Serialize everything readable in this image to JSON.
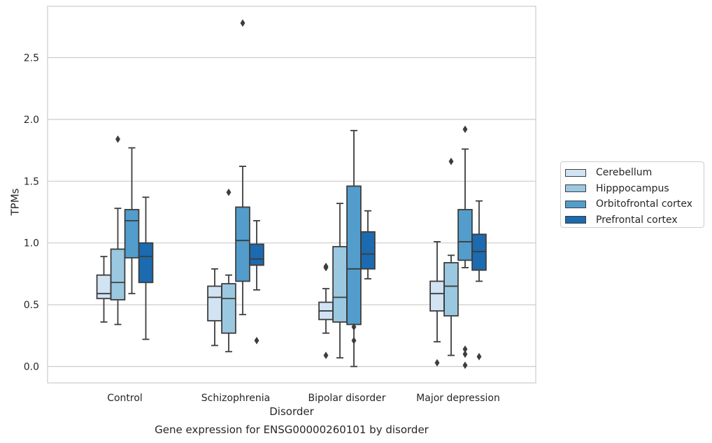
{
  "chart_data": {
    "type": "boxplot",
    "title": "",
    "caption": "Gene expression for ENSG00000260101 by disorder",
    "xlabel": "Disorder",
    "ylabel": "TPMs",
    "ylim": [
      -0.13,
      2.92
    ],
    "yticks": [
      0.0,
      0.5,
      1.0,
      1.5,
      2.0,
      2.5
    ],
    "ytick_labels": [
      "0.0",
      "0.5",
      "1.0",
      "1.5",
      "2.0",
      "2.5"
    ],
    "grid": "horizontal",
    "legend_position": "right",
    "categories": [
      "Control",
      "Schizophrenia",
      "Bipolar disorder",
      "Major depression"
    ],
    "series": [
      {
        "name": "Cerebellum",
        "color": "#d2e3f3",
        "boxes": [
          {
            "whislo": 0.36,
            "q1": 0.55,
            "med": 0.59,
            "q3": 0.74,
            "whishi": 0.89,
            "fliers": []
          },
          {
            "whislo": 0.17,
            "q1": 0.37,
            "med": 0.56,
            "q3": 0.65,
            "whishi": 0.79,
            "fliers": []
          },
          {
            "whislo": 0.27,
            "q1": 0.38,
            "med": 0.45,
            "q3": 0.52,
            "whishi": 0.63,
            "fliers": [
              0.09,
              0.81,
              0.8
            ]
          },
          {
            "whislo": 0.2,
            "q1": 0.45,
            "med": 0.59,
            "q3": 0.69,
            "whishi": 1.01,
            "fliers": [
              0.03
            ]
          }
        ]
      },
      {
        "name": "Hipppocampus",
        "color": "#9ac8e0",
        "boxes": [
          {
            "whislo": 0.34,
            "q1": 0.54,
            "med": 0.68,
            "q3": 0.95,
            "whishi": 1.28,
            "fliers": [
              1.84
            ]
          },
          {
            "whislo": 0.12,
            "q1": 0.27,
            "med": 0.55,
            "q3": 0.67,
            "whishi": 0.74,
            "fliers": [
              1.41
            ]
          },
          {
            "whislo": 0.07,
            "q1": 0.36,
            "med": 0.56,
            "q3": 0.97,
            "whishi": 1.32,
            "fliers": []
          },
          {
            "whislo": 0.09,
            "q1": 0.41,
            "med": 0.65,
            "q3": 0.84,
            "whishi": 0.9,
            "fliers": [
              1.66
            ]
          }
        ]
      },
      {
        "name": "Orbitofrontal cortex",
        "color": "#529dcc",
        "boxes": [
          {
            "whislo": 0.59,
            "q1": 0.88,
            "med": 1.18,
            "q3": 1.27,
            "whishi": 1.77,
            "fliers": []
          },
          {
            "whislo": 0.42,
            "q1": 0.69,
            "med": 1.02,
            "q3": 1.29,
            "whishi": 1.62,
            "fliers": [
              2.78
            ]
          },
          {
            "whislo": 0.0,
            "q1": 0.34,
            "med": 0.79,
            "q3": 1.46,
            "whishi": 1.91,
            "fliers": [
              0.32,
              0.21
            ]
          },
          {
            "whislo": 0.8,
            "q1": 0.86,
            "med": 1.01,
            "q3": 1.27,
            "whishi": 1.76,
            "fliers": [
              1.92,
              0.14,
              0.1,
              0.01
            ]
          }
        ]
      },
      {
        "name": "Prefrontal cortex",
        "color": "#1c6aaf",
        "boxes": [
          {
            "whislo": 0.22,
            "q1": 0.68,
            "med": 0.89,
            "q3": 1.0,
            "whishi": 1.37,
            "fliers": []
          },
          {
            "whislo": 0.62,
            "q1": 0.82,
            "med": 0.87,
            "q3": 0.99,
            "whishi": 1.18,
            "fliers": [
              0.21
            ]
          },
          {
            "whislo": 0.71,
            "q1": 0.79,
            "med": 0.91,
            "q3": 1.09,
            "whishi": 1.26,
            "fliers": []
          },
          {
            "whislo": 0.69,
            "q1": 0.78,
            "med": 0.93,
            "q3": 1.07,
            "whishi": 1.34,
            "fliers": [
              0.08
            ]
          }
        ]
      }
    ]
  }
}
